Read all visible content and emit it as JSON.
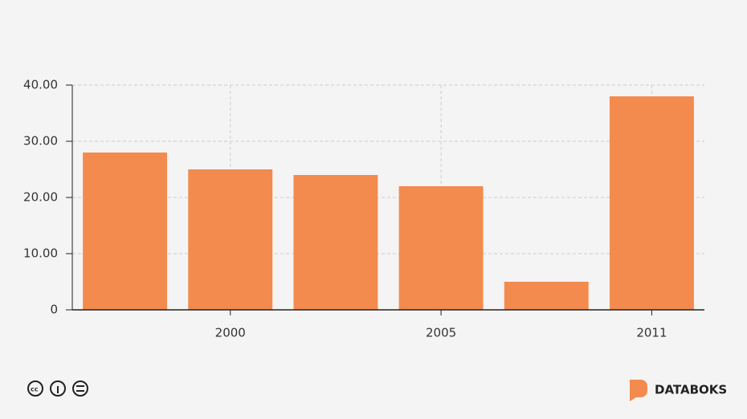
{
  "chart_data": {
    "type": "bar",
    "categories": [
      null,
      "2000",
      null,
      "2005",
      null,
      "2011"
    ],
    "values": [
      28,
      25,
      24,
      22,
      5,
      38
    ],
    "color": "#f38b4f",
    "ylim": [
      0,
      40
    ],
    "yticks": [
      0,
      {
        "value": 10,
        "label": "10.00"
      },
      {
        "value": 20,
        "label": "20.00"
      },
      {
        "value": 30,
        "label": "30.00"
      },
      {
        "value": 40,
        "label": "40.00"
      }
    ],
    "grid": true
  },
  "footer": {
    "brand": "DATABOKS"
  }
}
